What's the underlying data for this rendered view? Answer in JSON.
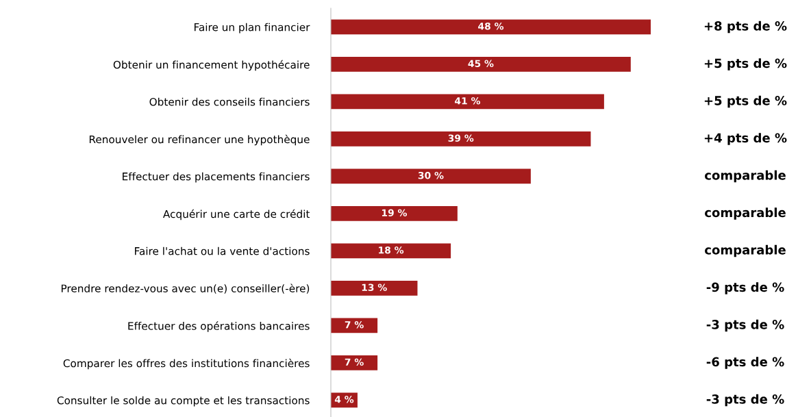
{
  "chart_data": {
    "type": "bar",
    "orientation": "horizontal",
    "categories": [
      "Faire un plan financier",
      "Obtenir un financement hypothécaire",
      "Obtenir des conseils financiers",
      "Renouveler ou refinancer une hypothèque",
      "Effectuer des placements financiers",
      "Acquérir une carte de crédit",
      "Faire l'achat ou la vente d'actions",
      "Prendre rendez-vous avec un(e) conseiller(-ère)",
      "Effectuer des opérations bancaires",
      "Comparer les offres des institutions financières",
      "Consulter le solde au compte et les transactions"
    ],
    "values": [
      48,
      45,
      41,
      39,
      30,
      19,
      18,
      13,
      7,
      7,
      4
    ],
    "value_labels": [
      "48 %",
      "45 %",
      "41 %",
      "39 %",
      "30 %",
      "19 %",
      "18 %",
      "13 %",
      "7 %",
      "7 %",
      "4 %"
    ],
    "color": "#a51c1c",
    "annotations": [
      "+8 pts de %",
      "+5 pts de %",
      "+5 pts de %",
      "+4 pts de %",
      "comparable",
      "comparable",
      "comparable",
      "-9 pts de %",
      "-3 pts de %",
      "-6 pts de %",
      "-3 pts de %"
    ]
  }
}
